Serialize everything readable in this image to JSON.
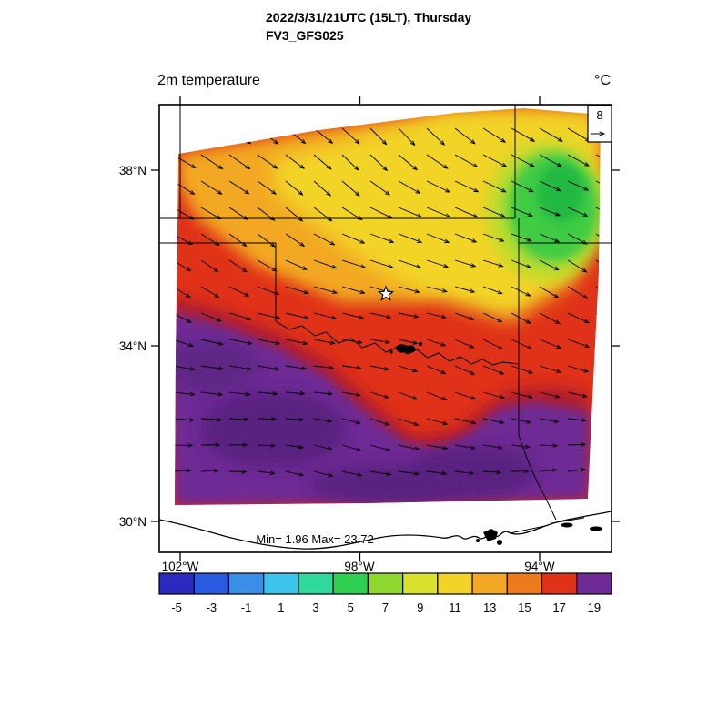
{
  "header": {
    "title_line1": "2022/3/31/21UTC (15LT), Thursday",
    "title_line2": "FV3_GFS025"
  },
  "map": {
    "variable_label": "2m temperature",
    "units_label": "°C",
    "min_max_label": "Min= 1.96 Max= 23.72",
    "wind_legend_value": "8",
    "lat_labels": [
      "38°N",
      "34°N",
      "30°N"
    ],
    "lon_labels": [
      "102°W",
      "98°W",
      "94°W"
    ]
  },
  "chart_data": {
    "type": "heatmap",
    "title": "2m temperature",
    "units": "°C",
    "model_label": "FV3_GFS025",
    "valid_time_label": "2022/3/31/21UTC (15LT), Thursday",
    "field_min": 1.96,
    "field_max": 23.72,
    "wind_reference_value": 8,
    "lat_ticks_deg_n": [
      38,
      34,
      30
    ],
    "lon_ticks_deg_w": [
      102,
      98,
      94
    ],
    "colorbar": {
      "tick_labels": [
        "-5",
        "-3",
        "-1",
        "1",
        "3",
        "5",
        "7",
        "9",
        "11",
        "13",
        "15",
        "17",
        "19"
      ],
      "colors": [
        "#2a2ac0",
        "#2a5ae0",
        "#3a8ee8",
        "#3cc4ec",
        "#30d89a",
        "#2fcf52",
        "#8ed72e",
        "#d8e22e",
        "#f2d428",
        "#f2a824",
        "#ee7a1e",
        "#e03218",
        "#6e2b95"
      ]
    },
    "field_summary": {
      "coolest_region": "northeast corner of domain, green, approx 3-7 °C",
      "north_band": "yellow-orange band across the north, approx 9-15 °C",
      "center": "red, approx 15-19 °C",
      "hottest_region": "south and southwest, purple, above 19 °C up to max 23.72 °C",
      "wind": "arrows point from northwest to southeast in the north, becoming easterly toward the south; reference vector = 8"
    }
  }
}
